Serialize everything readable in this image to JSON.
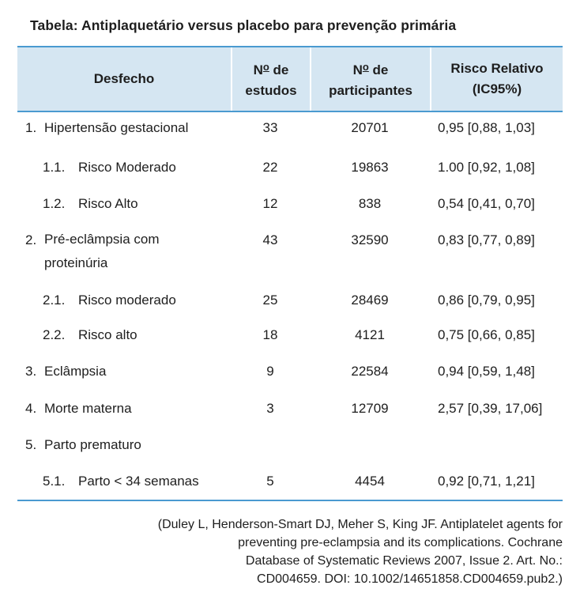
{
  "title": "Tabela: Antiplaquetário versus placebo para prevenção primária",
  "headers": {
    "desfecho": "Desfecho",
    "estudos_prefix": "N",
    "estudos_sup": "o",
    "estudos_suffix": " de",
    "estudos_line2": "estudos",
    "participantes_prefix": "N",
    "participantes_sup": "o",
    "participantes_suffix": " de",
    "participantes_line2": "participantes",
    "risco_line1": "Risco Relativo",
    "risco_line2": "(IC95%)"
  },
  "rows": [
    {
      "num": "1.",
      "label": "Hipertensão gestacional",
      "estudos": "33",
      "participantes": "20701",
      "risco": "0,95 [0,88, 1,03]"
    },
    {
      "num": "1.1.",
      "label": "Risco Moderado",
      "estudos": "22",
      "participantes": "19863",
      "risco": "1.00 [0,92, 1,08]"
    },
    {
      "num": "1.2.",
      "label": "Risco Alto",
      "estudos": "12",
      "participantes": "838",
      "risco": "0,54 [0,41, 0,70]"
    },
    {
      "num": "2.",
      "label": "Pré-eclâmpsia com proteinúria",
      "estudos": "43",
      "participantes": "32590",
      "risco": "0,83 [0,77, 0,89]"
    },
    {
      "num": "2.1.",
      "label": "Risco moderado",
      "estudos": "25",
      "participantes": "28469",
      "risco": "0,86 [0,79, 0,95]"
    },
    {
      "num": "2.2.",
      "label": "Risco alto",
      "estudos": "18",
      "participantes": "4121",
      "risco": "0,75 [0,66, 0,85]"
    },
    {
      "num": "3.",
      "label": "Eclâmpsia",
      "estudos": "9",
      "participantes": "22584",
      "risco": "0,94 [0,59, 1,48]"
    },
    {
      "num": "4.",
      "label": "Morte materna",
      "estudos": "3",
      "participantes": "12709",
      "risco": "2,57 [0,39, 17,06]"
    },
    {
      "num": "5.",
      "label": "Parto prematuro",
      "estudos": "",
      "participantes": "",
      "risco": ""
    },
    {
      "num": "5.1.",
      "label": "Parto < 34 semanas",
      "estudos": "5",
      "participantes": "4454",
      "risco": "0,92 [0,71, 1,21]"
    }
  ],
  "citation": {
    "line1": "(Duley L, Henderson-Smart DJ, Meher S, King JF. Antiplatelet agents for",
    "line2": "preventing pre-eclampsia and its complications. Cochrane",
    "line3": "Database of Systematic Reviews 2007, Issue 2. Art. No.:",
    "line4": "CD004659. DOI: 10.1002/14651858.CD004659.pub2.)"
  },
  "colors": {
    "header_bg": "#d5e6f2",
    "rule": "#4a9ad0"
  }
}
